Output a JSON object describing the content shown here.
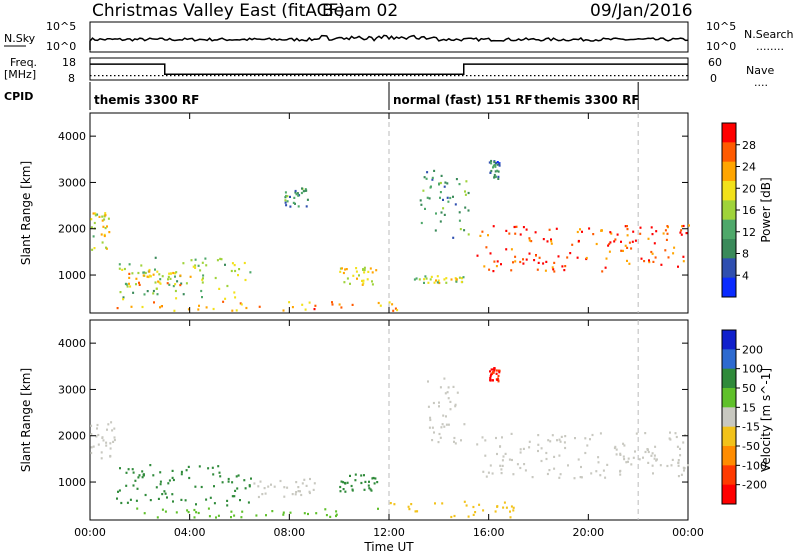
{
  "header": {
    "title": "Christmas Valley East (fitACF)",
    "beam": "Beam 02",
    "date": "09/Jan/2016"
  },
  "nsky_panel": {
    "label": "N.Sky",
    "left_ticks": [
      "10^5",
      "10^0"
    ],
    "right_ticks": [
      "10^5",
      "10^0"
    ],
    "right_label": "N.Search",
    "right_dots": "........"
  },
  "freq_panel": {
    "label_line1": "Freq.",
    "label_line2": "[MHz]",
    "left_ticks": [
      "18",
      "8"
    ],
    "right_ticks": [
      "60",
      "0"
    ],
    "right_label": "Nave",
    "right_dots": "....",
    "freq_steps": [
      {
        "from_h": 0.0,
        "to_h": 3.0,
        "mhz": 15.2
      },
      {
        "from_h": 3.0,
        "to_h": 15.0,
        "mhz": 10.6
      },
      {
        "from_h": 15.0,
        "to_h": 24.0,
        "mhz": 15.2
      }
    ],
    "nave_level": 12
  },
  "cpid": {
    "label": "CPID",
    "segments": [
      {
        "start_h": 0.0,
        "end_h": 12.0,
        "name": "themis 3300 RF"
      },
      {
        "start_h": 12.0,
        "end_h": 22.0,
        "name": "normal (fast) 151 RF"
      },
      {
        "start_h": 22.0,
        "end_h": 24.0,
        "name": "themis 3300 RF"
      }
    ]
  },
  "colors": {
    "power_scale": [
      "#0a2bff",
      "#2f4fb0",
      "#3a8a5a",
      "#4ea86a",
      "#9fd33a",
      "#f2e11a",
      "#ffa500",
      "#ff5a00",
      "#ff0000"
    ],
    "velocity_scale": [
      "#1020cc",
      "#2d6ad0",
      "#2f8a3a",
      "#5fc02a",
      "#c8c8c0",
      "#f2c21a",
      "#ff8c00",
      "#ff3a00",
      "#ff0000"
    ]
  },
  "chart_data": [
    {
      "type": "heatmap",
      "title": "",
      "xlabel": "Time UT",
      "ylabel": "Slant Range [km]",
      "xlim": [
        0,
        24
      ],
      "ylim": [
        180,
        4500
      ],
      "x_ticks": [
        "00:00",
        "04:00",
        "08:00",
        "12:00",
        "16:00",
        "20:00",
        "00:00"
      ],
      "y_ticks": [
        1000,
        2000,
        3000,
        4000
      ],
      "colorbar": {
        "label": "Power [dB]",
        "ticks": [
          4,
          8,
          12,
          16,
          20,
          24,
          28
        ],
        "range": [
          0,
          30
        ]
      },
      "series": [
        {
          "name": "",
          "x_range_h": [
            0.0,
            0.8
          ],
          "range_km": [
            1500,
            2400
          ],
          "value": 18
        },
        {
          "name": "",
          "x_range_h": [
            1.0,
            6.5
          ],
          "range_km": [
            500,
            1400
          ],
          "value": 14
        },
        {
          "name": "",
          "x_range_h": [
            1.5,
            4.0
          ],
          "range_km": [
            800,
            1100
          ],
          "value": 20
        },
        {
          "name": "",
          "x_range_h": [
            1.0,
            13.0
          ],
          "range_km": [
            250,
            450
          ],
          "value": 22
        },
        {
          "name": "",
          "x_range_h": [
            7.8,
            8.8
          ],
          "range_km": [
            2500,
            2900
          ],
          "value": 10
        },
        {
          "name": "",
          "x_range_h": [
            10.0,
            11.5
          ],
          "range_km": [
            800,
            1200
          ],
          "value": 18
        },
        {
          "name": "",
          "x_range_h": [
            13.0,
            15.0
          ],
          "range_km": [
            850,
            1000
          ],
          "value": 16
        },
        {
          "name": "",
          "x_range_h": [
            13.2,
            15.2
          ],
          "range_km": [
            1800,
            3300
          ],
          "value": 10
        },
        {
          "name": "",
          "x_range_h": [
            15.5,
            24.0
          ],
          "range_km": [
            1100,
            2100
          ],
          "value": 26
        },
        {
          "name": "",
          "x_range_h": [
            16.0,
            16.4
          ],
          "range_km": [
            3100,
            3500
          ],
          "value": 8
        }
      ]
    },
    {
      "type": "heatmap",
      "title": "",
      "xlabel": "Time UT",
      "ylabel": "Slant Range [km]",
      "xlim": [
        0,
        24
      ],
      "ylim": [
        180,
        4500
      ],
      "x_ticks": [
        "00:00",
        "04:00",
        "08:00",
        "12:00",
        "16:00",
        "20:00",
        "00:00"
      ],
      "y_ticks": [
        1000,
        2000,
        3000,
        4000
      ],
      "colorbar": {
        "label": "Velocity [m s^-1]",
        "ticks": [
          200,
          100,
          50,
          15,
          -15,
          -50,
          -100,
          -200
        ]
      },
      "series": [
        {
          "name": "",
          "x_range_h": [
            0.0,
            1.0
          ],
          "range_km": [
            1500,
            2400
          ],
          "value": 0
        },
        {
          "name": "",
          "x_range_h": [
            1.0,
            6.5
          ],
          "range_km": [
            500,
            1400
          ],
          "value": 60
        },
        {
          "name": "",
          "x_range_h": [
            6.5,
            9.0
          ],
          "range_km": [
            700,
            1100
          ],
          "value": 0
        },
        {
          "name": "",
          "x_range_h": [
            1.0,
            12.0
          ],
          "range_km": [
            250,
            450
          ],
          "value": 40
        },
        {
          "name": "",
          "x_range_h": [
            12.0,
            17.0
          ],
          "range_km": [
            250,
            600
          ],
          "value": -40
        },
        {
          "name": "",
          "x_range_h": [
            10.0,
            11.5
          ],
          "range_km": [
            800,
            1200
          ],
          "value": 60
        },
        {
          "name": "",
          "x_range_h": [
            13.5,
            15.0
          ],
          "range_km": [
            1800,
            3300
          ],
          "value": 0
        },
        {
          "name": "",
          "x_range_h": [
            15.5,
            24.0
          ],
          "range_km": [
            1100,
            2100
          ],
          "value": 0
        },
        {
          "name": "",
          "x_range_h": [
            16.0,
            16.4
          ],
          "range_km": [
            3200,
            3500
          ],
          "value": -200
        }
      ]
    }
  ]
}
